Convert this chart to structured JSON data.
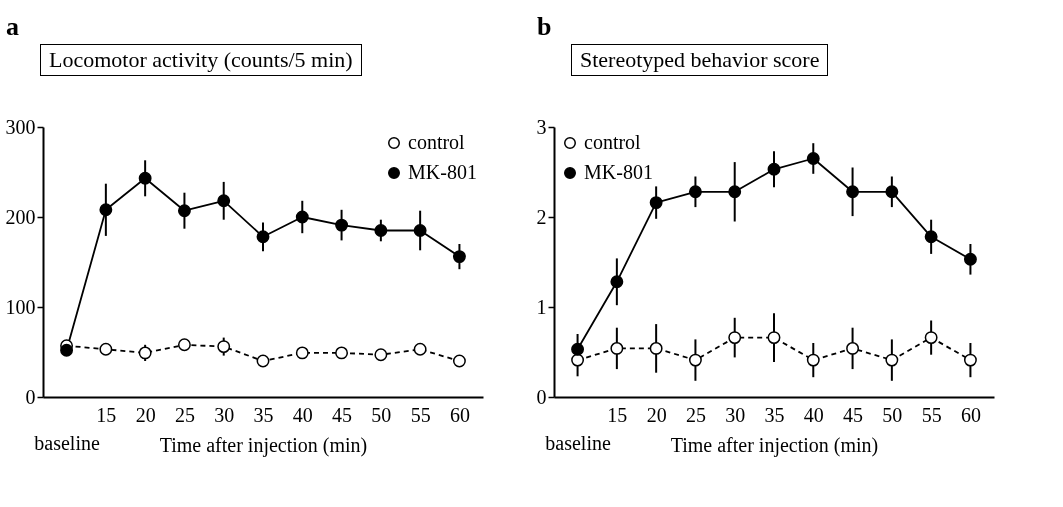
{
  "chart_data": [
    {
      "type": "line",
      "title": "Locomotor activity (counts/5 min)",
      "annotations": [
        "a"
      ],
      "xlabel": "Time after injection (min)",
      "categories": [
        "baseline",
        "15",
        "20",
        "25",
        "30",
        "35",
        "40",
        "45",
        "50",
        "55",
        "60"
      ],
      "series": [
        {
          "name": "control",
          "color": "#ffffff",
          "line_style": "dashed",
          "values": [
            57,
            53,
            49,
            58,
            56,
            40,
            49,
            49,
            47,
            53,
            40
          ],
          "errors": [
            null,
            null,
            9,
            6,
            10,
            null,
            null,
            null,
            null,
            null,
            null
          ]
        },
        {
          "name": "MK-801",
          "color": "#000000",
          "line_style": "solid",
          "values": [
            52,
            208,
            243,
            207,
            218,
            178,
            200,
            191,
            185,
            185,
            156
          ],
          "errors": [
            null,
            29,
            20,
            20,
            21,
            16,
            18,
            17,
            12,
            22,
            14
          ]
        }
      ],
      "ylim": [
        0,
        300
      ],
      "yticks": [
        0,
        100,
        200,
        300
      ],
      "grid": false,
      "legend": "top right",
      "marker": "circle"
    },
    {
      "type": "line",
      "title": "Stereotyped behavior score",
      "annotations": [
        "b"
      ],
      "xlabel": "Time after injection (min)",
      "categories": [
        "baseline",
        "15",
        "20",
        "25",
        "30",
        "35",
        "40",
        "45",
        "50",
        "55",
        "60"
      ],
      "series": [
        {
          "name": "control",
          "color": "#ffffff",
          "line_style": "dashed",
          "values": [
            0.41,
            0.54,
            0.54,
            0.41,
            0.66,
            0.66,
            0.41,
            0.54,
            0.41,
            0.66,
            0.41
          ],
          "errors": [
            0.18,
            0.23,
            0.27,
            0.23,
            0.22,
            0.27,
            0.19,
            0.23,
            0.23,
            0.19,
            0.19
          ]
        },
        {
          "name": "MK-801",
          "color": "#000000",
          "line_style": "solid",
          "values": [
            0.53,
            1.28,
            2.16,
            2.28,
            2.28,
            2.53,
            2.65,
            2.28,
            2.28,
            1.78,
            1.53
          ],
          "errors": [
            0.17,
            0.26,
            0.18,
            0.17,
            0.33,
            0.2,
            0.17,
            0.27,
            0.17,
            0.19,
            0.17
          ]
        }
      ],
      "ylim": [
        0,
        3
      ],
      "yticks": [
        0,
        1,
        2,
        3
      ],
      "grid": false,
      "legend": "top left",
      "marker": "circle"
    }
  ]
}
